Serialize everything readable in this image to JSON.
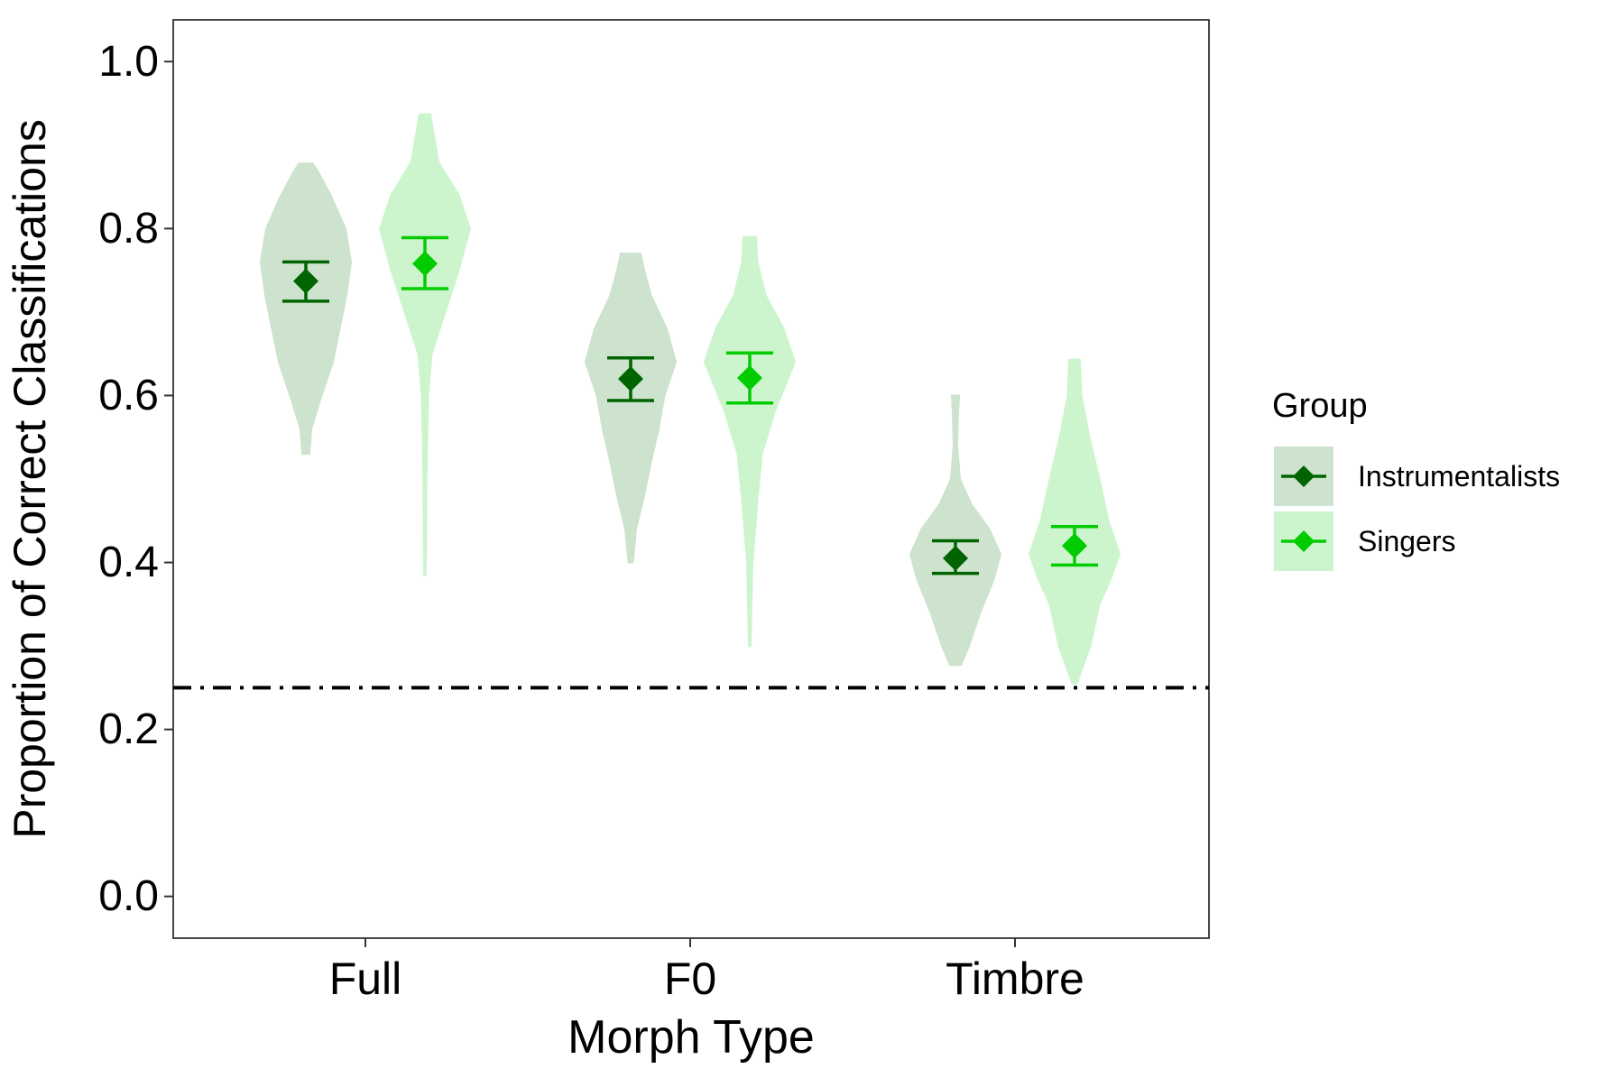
{
  "chart_data": {
    "type": "violin",
    "xlabel": "Morph Type",
    "ylabel": "Proportion of Correct Classifications",
    "categories": [
      "Full",
      "F0",
      "Timbre"
    ],
    "ylim": [
      -0.05,
      1.05
    ],
    "yticks": [
      "0.0",
      "0.2",
      "0.4",
      "0.6",
      "0.8",
      "1.0"
    ],
    "reference_line": {
      "y": 0.25,
      "style": "dashdot",
      "color": "#000000"
    },
    "legend": {
      "title": "Group",
      "position": "right",
      "entries": [
        "Instrumentalists",
        "Singers"
      ]
    },
    "series": [
      {
        "name": "Instrumentalists",
        "color": "#006400",
        "fill": "#cde3cd",
        "means": [
          0.737,
          0.62,
          0.405
        ],
        "ci_low": [
          0.713,
          0.594,
          0.387
        ],
        "ci_high": [
          0.76,
          0.645,
          0.426
        ],
        "violins": [
          {
            "ymin": 0.53,
            "ymax": 0.878,
            "profile": [
              [
                0.53,
                0.08
              ],
              [
                0.56,
                0.12
              ],
              [
                0.6,
                0.35
              ],
              [
                0.64,
                0.6
              ],
              [
                0.68,
                0.75
              ],
              [
                0.72,
                0.9
              ],
              [
                0.76,
                1.0
              ],
              [
                0.8,
                0.88
              ],
              [
                0.84,
                0.55
              ],
              [
                0.87,
                0.25
              ],
              [
                0.878,
                0.15
              ]
            ]
          },
          {
            "ymin": 0.4,
            "ymax": 0.77,
            "profile": [
              [
                0.4,
                0.05
              ],
              [
                0.44,
                0.12
              ],
              [
                0.48,
                0.3
              ],
              [
                0.52,
                0.45
              ],
              [
                0.56,
                0.62
              ],
              [
                0.6,
                0.75
              ],
              [
                0.64,
                1.0
              ],
              [
                0.68,
                0.8
              ],
              [
                0.72,
                0.45
              ],
              [
                0.75,
                0.3
              ],
              [
                0.77,
                0.22
              ]
            ]
          },
          {
            "ymin": 0.277,
            "ymax": 0.6,
            "profile": [
              [
                0.277,
                0.12
              ],
              [
                0.3,
                0.3
              ],
              [
                0.34,
                0.55
              ],
              [
                0.38,
                0.85
              ],
              [
                0.41,
                1.0
              ],
              [
                0.44,
                0.75
              ],
              [
                0.47,
                0.35
              ],
              [
                0.5,
                0.1
              ],
              [
                0.54,
                0.04
              ],
              [
                0.58,
                0.06
              ],
              [
                0.6,
                0.08
              ]
            ]
          }
        ]
      },
      {
        "name": "Singers",
        "color": "#00cc00",
        "fill": "#cdf5cd",
        "means": [
          0.758,
          0.621,
          0.42
        ],
        "ci_low": [
          0.728,
          0.591,
          0.397
        ],
        "ci_high": [
          0.789,
          0.651,
          0.443
        ],
        "violins": [
          {
            "ymin": 0.385,
            "ymax": 0.937,
            "profile": [
              [
                0.385,
                0.02
              ],
              [
                0.45,
                0.03
              ],
              [
                0.52,
                0.04
              ],
              [
                0.6,
                0.07
              ],
              [
                0.65,
                0.15
              ],
              [
                0.7,
                0.45
              ],
              [
                0.75,
                0.75
              ],
              [
                0.8,
                1.0
              ],
              [
                0.84,
                0.75
              ],
              [
                0.88,
                0.3
              ],
              [
                0.937,
                0.12
              ]
            ]
          },
          {
            "ymin": 0.3,
            "ymax": 0.79,
            "profile": [
              [
                0.3,
                0.02
              ],
              [
                0.4,
                0.06
              ],
              [
                0.48,
                0.18
              ],
              [
                0.53,
                0.27
              ],
              [
                0.58,
                0.55
              ],
              [
                0.64,
                1.0
              ],
              [
                0.68,
                0.75
              ],
              [
                0.72,
                0.35
              ],
              [
                0.76,
                0.17
              ],
              [
                0.79,
                0.14
              ]
            ]
          },
          {
            "ymin": 0.255,
            "ymax": 0.643,
            "profile": [
              [
                0.255,
                0.05
              ],
              [
                0.3,
                0.35
              ],
              [
                0.35,
                0.55
              ],
              [
                0.38,
                0.8
              ],
              [
                0.41,
                1.0
              ],
              [
                0.45,
                0.75
              ],
              [
                0.5,
                0.55
              ],
              [
                0.55,
                0.33
              ],
              [
                0.6,
                0.15
              ],
              [
                0.643,
                0.12
              ]
            ]
          }
        ]
      }
    ]
  }
}
